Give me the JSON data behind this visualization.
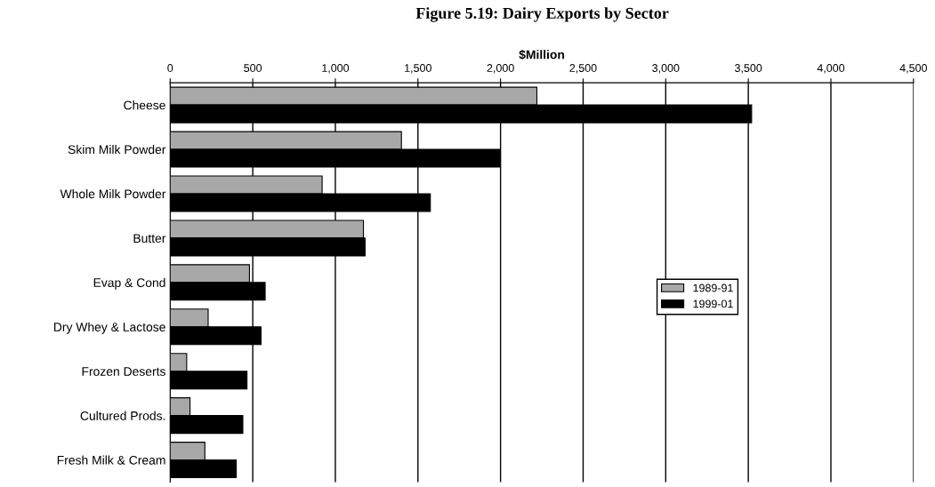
{
  "chart_data": {
    "type": "bar",
    "orientation": "horizontal",
    "title": "Figure 5.19: Dairy Exports by Sector",
    "xlabel": "$Million",
    "categories": [
      "Cheese",
      "Skim Milk Powder",
      "Whole Milk Powder",
      "Butter",
      "Evap & Cond",
      "Dry Whey & Lactose",
      "Frozen Deserts",
      "Cultured Prods.",
      "Fresh Milk & Cream"
    ],
    "series": [
      {
        "name": "1989-91",
        "color": "#a8a8a8",
        "values": [
          2220,
          1400,
          920,
          1170,
          480,
          230,
          100,
          120,
          210
        ]
      },
      {
        "name": "1999-01",
        "color": "#000000",
        "values": [
          3520,
          1995,
          1575,
          1180,
          575,
          550,
          465,
          440,
          400
        ]
      }
    ],
    "xlim": [
      0,
      4500
    ],
    "xticks": [
      {
        "value": 0,
        "label": "0"
      },
      {
        "value": 500,
        "label": "500"
      },
      {
        "value": 1000,
        "label": "1,000"
      },
      {
        "value": 1500,
        "label": "1,500"
      },
      {
        "value": 2000,
        "label": "2,000"
      },
      {
        "value": 2500,
        "label": "2,500"
      },
      {
        "value": 3000,
        "label": "3,000"
      },
      {
        "value": 3500,
        "label": "3,500"
      },
      {
        "value": 4000,
        "label": "4,000"
      },
      {
        "value": 4500,
        "label": "4,500"
      }
    ],
    "grid": "x",
    "legend": "right"
  }
}
